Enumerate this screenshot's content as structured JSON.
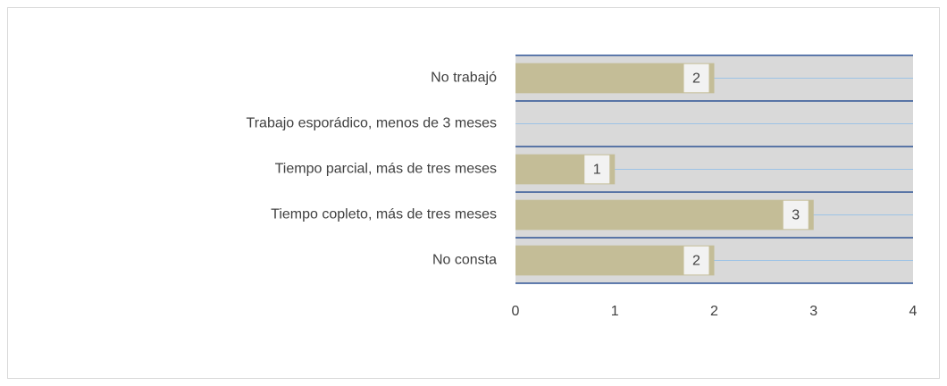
{
  "chart_data": {
    "type": "bar",
    "orientation": "horizontal",
    "categories": [
      "No trabajó",
      "Trabajo esporádico, menos de 3 meses",
      "Tiempo parcial, más de tres meses",
      "Tiempo copleto, más de tres meses",
      "No consta"
    ],
    "values": [
      2,
      null,
      1,
      3,
      2
    ],
    "color": "#c4bd97",
    "xlim": [
      0,
      4
    ],
    "xticks": [
      0,
      1,
      2,
      3,
      4
    ],
    "grid": false
  }
}
